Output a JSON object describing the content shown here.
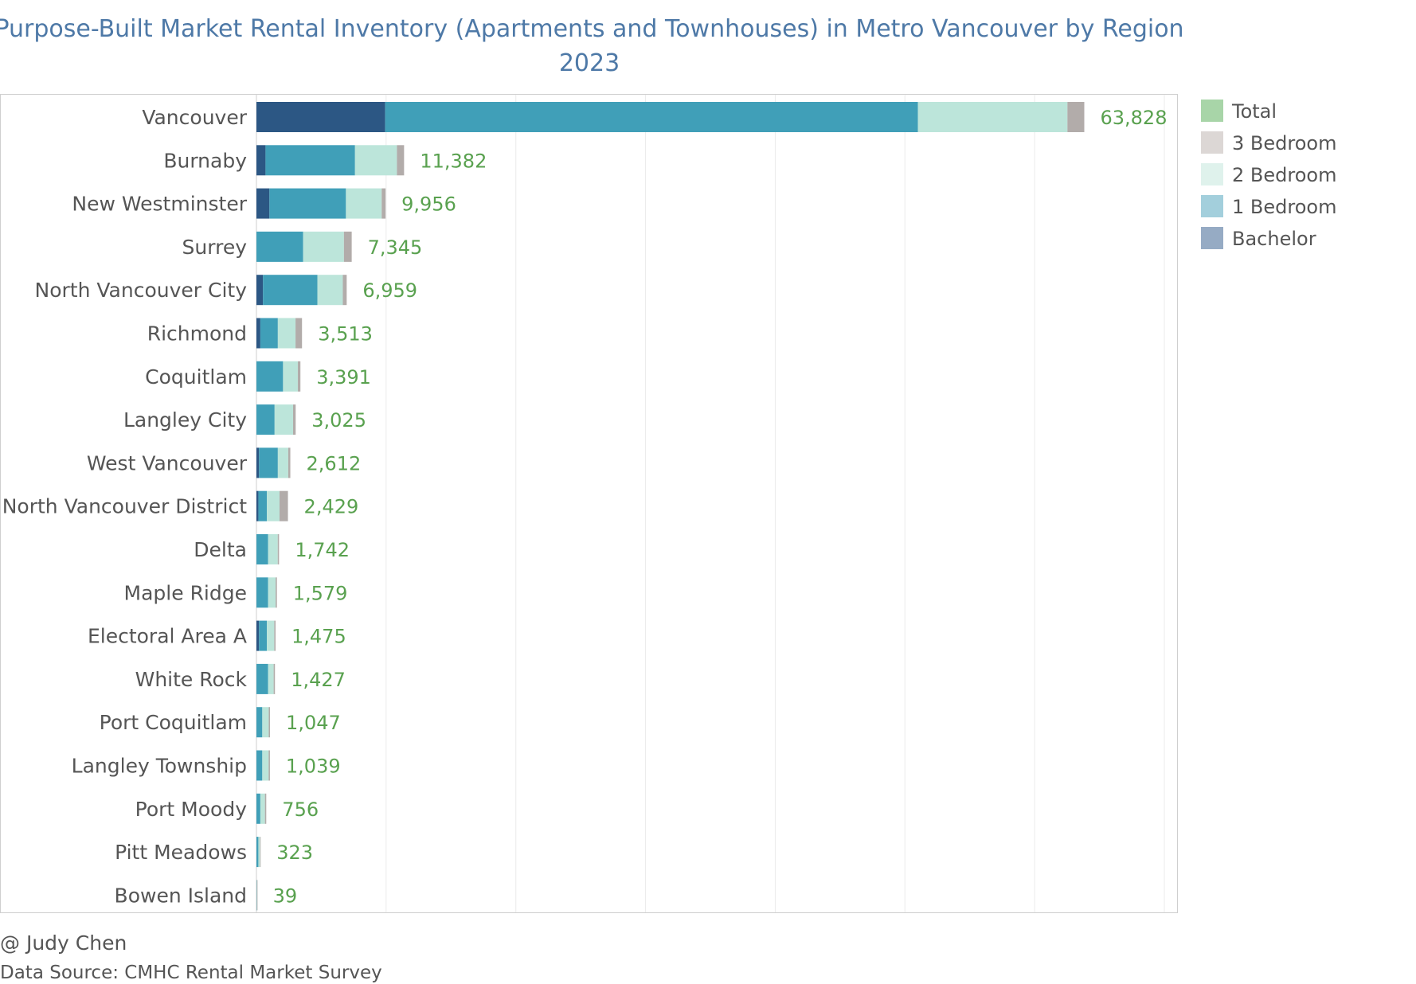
{
  "chart_data": {
    "type": "bar",
    "orientation": "horizontal",
    "stacked": true,
    "title": "Purpose-Built Market Rental Inventory (Apartments and Townhouses) in Metro Vancouver by Region",
    "subtitle": "2023",
    "xlim": [
      0,
      70000
    ],
    "grid": true,
    "legend_position": "right",
    "categories": [
      "Vancouver",
      "Burnaby",
      "New Westminster",
      "Surrey",
      "North Vancouver City",
      "Richmond",
      "Coquitlam",
      "Langley City",
      "West Vancouver",
      "North Vancouver District",
      "Delta",
      "Maple Ridge",
      "Electoral Area A",
      "White Rock",
      "Port Coquitlam",
      "Langley Township",
      "Port Moody",
      "Pitt Meadows",
      "Bowen Island"
    ],
    "series": [
      {
        "name": "Bachelor",
        "color": "#2c5784",
        "values": [
          9925,
          700,
          1000,
          0,
          500,
          300,
          0,
          0,
          200,
          150,
          0,
          0,
          200,
          0,
          0,
          0,
          0,
          0,
          0
        ]
      },
      {
        "name": "1 Bedroom",
        "color": "#409fb8",
        "values": [
          41075,
          6900,
          5900,
          3600,
          4200,
          1350,
          2050,
          1400,
          1450,
          650,
          900,
          900,
          600,
          900,
          450,
          450,
          300,
          150,
          15
        ]
      },
      {
        "name": "2 Bedroom",
        "color": "#bce5da",
        "values": [
          11528,
          3232,
          2756,
          3145,
          1959,
          1363,
          1141,
          1425,
          802,
          979,
          742,
          579,
          575,
          427,
          497,
          489,
          356,
          123,
          18
        ]
      },
      {
        "name": "3 Bedroom",
        "color": "#b2acaa",
        "values": [
          1300,
          550,
          300,
          600,
          300,
          500,
          200,
          200,
          160,
          650,
          100,
          100,
          100,
          100,
          100,
          100,
          100,
          50,
          6
        ]
      }
    ],
    "totals": [
      "63,828",
      "11,382",
      "9,956",
      "7,345",
      "6,959",
      "3,513",
      "3,391",
      "3,025",
      "2,612",
      "2,429",
      "1,742",
      "1,579",
      "1,475",
      "1,427",
      "1,047",
      "1,039",
      "756",
      "323",
      "39"
    ],
    "legend": [
      {
        "label": "Total",
        "color": "#a8d5a8"
      },
      {
        "label": "3 Bedroom",
        "color": "#dcd7d5"
      },
      {
        "label": "2 Bedroom",
        "color": "#dff2ec"
      },
      {
        "label": "1 Bedroom",
        "color": "#a3cfdc"
      },
      {
        "label": "Bachelor",
        "color": "#96abc4"
      }
    ]
  },
  "footer": {
    "author": "@ Judy Chen",
    "source": "Data Source: CMHC Rental Market Survey"
  },
  "colors": {
    "title": "#4e79a7",
    "total_label": "#59a14f",
    "gridline": "#ebebeb"
  }
}
